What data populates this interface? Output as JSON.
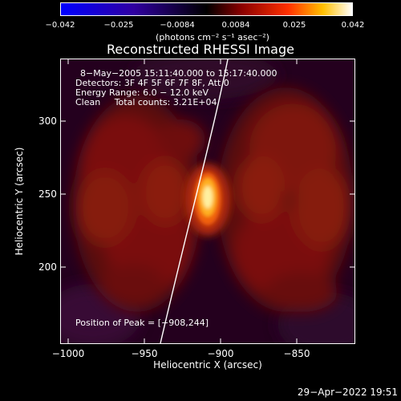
{
  "colorbar": {
    "ticks": [
      "−0.042",
      "−0.025",
      "−0.0084",
      "0.0084",
      "0.025",
      "0.042"
    ],
    "units": "(photons cm⁻² s⁻¹ asec⁻²)"
  },
  "title": "Reconstructed RHESSI Image",
  "info": {
    "time": "8−May−2005 15:11:40.000 to 15:17:40.000",
    "detectors": "Detectors: 3F 4F 5F 6F 7F 8F, Att 0",
    "energy": "Energy Range: 6.0 − 12.0 keV",
    "clean": "Clean     Total counts: 3.21E+04",
    "peak": "Position of Peak = [−908,244]"
  },
  "axes": {
    "xlabel": "Heliocentric X (arcsec)",
    "ylabel": "Heliocentric Y (arcsec)",
    "xticks": [
      "−1000",
      "−950",
      "−900",
      "−850"
    ],
    "yticks": [
      "300",
      "250",
      "200"
    ]
  },
  "timestamp": "29−Apr−2022 19:51"
}
